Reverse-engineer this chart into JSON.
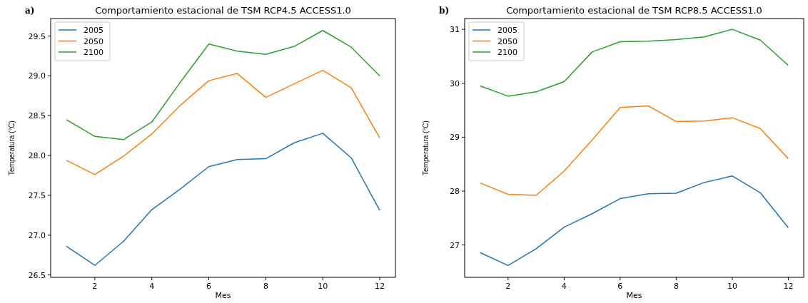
{
  "chart_data": [
    {
      "type": "line",
      "title": "Comportamiento estacional de TSM RCP4.5 ACCESS1.0",
      "annotations": [
        "a)"
      ],
      "xlabel": "Mes",
      "ylabel": "Temperatura (°C)",
      "x": [
        1,
        2,
        3,
        4,
        5,
        6,
        7,
        8,
        9,
        10,
        11,
        12
      ],
      "xlim": [
        0.45,
        12.55
      ],
      "xticks": [
        2,
        4,
        6,
        8,
        10,
        12
      ],
      "ylim": [
        26.47,
        29.72
      ],
      "yticks": [
        {
          "value": 26.5,
          "label": "26.5"
        },
        {
          "value": 27,
          "label": "27.0"
        },
        {
          "value": 27.5,
          "label": "27.5"
        },
        {
          "value": 28,
          "label": "28.0"
        },
        {
          "value": 28.5,
          "label": "28.5"
        },
        {
          "value": 29,
          "label": "29.0"
        },
        {
          "value": 29.5,
          "label": "29.5"
        }
      ],
      "legend": "top left",
      "series": [
        {
          "name": "2005",
          "color": "#1f77b4",
          "values": [
            26.86,
            26.62,
            26.92,
            27.32,
            27.58,
            27.86,
            27.95,
            27.96,
            28.16,
            28.28,
            27.97,
            27.31
          ]
        },
        {
          "name": "2050",
          "color": "#ff7f0e",
          "values": [
            27.94,
            27.76,
            27.99,
            28.27,
            28.63,
            28.94,
            29.03,
            28.73,
            28.9,
            29.07,
            28.85,
            28.22
          ]
        },
        {
          "name": "2100",
          "color": "#2ca02c",
          "values": [
            28.45,
            28.24,
            28.2,
            28.42,
            28.92,
            29.4,
            29.31,
            29.27,
            29.37,
            29.57,
            29.36,
            29.0
          ]
        }
      ]
    },
    {
      "type": "line",
      "title": "Comportamiento estacional de TSM RCP8.5 ACCESS1.0",
      "annotations": [
        "b)"
      ],
      "xlabel": "Mes",
      "ylabel": "Temperatura (°C)",
      "x": [
        1,
        2,
        3,
        4,
        5,
        6,
        7,
        8,
        9,
        10,
        11,
        12
      ],
      "xlim": [
        0.45,
        12.55
      ],
      "xticks": [
        2,
        4,
        6,
        8,
        10,
        12
      ],
      "ylim": [
        26.4,
        31.2
      ],
      "yticks": [
        27,
        28,
        29,
        30,
        31
      ],
      "legend": "top left",
      "series": [
        {
          "name": "2005",
          "color": "#1f77b4",
          "values": [
            26.86,
            26.62,
            26.93,
            27.33,
            27.58,
            27.86,
            27.95,
            27.96,
            28.16,
            28.28,
            27.97,
            27.32
          ]
        },
        {
          "name": "2050",
          "color": "#ff7f0e",
          "values": [
            28.15,
            27.94,
            27.92,
            28.37,
            28.95,
            29.55,
            29.58,
            29.29,
            29.3,
            29.36,
            29.16,
            28.6
          ]
        },
        {
          "name": "2100",
          "color": "#2ca02c",
          "values": [
            29.95,
            29.76,
            29.84,
            30.03,
            30.58,
            30.77,
            30.78,
            30.81,
            30.86,
            31.0,
            30.8,
            30.33
          ]
        }
      ]
    }
  ]
}
